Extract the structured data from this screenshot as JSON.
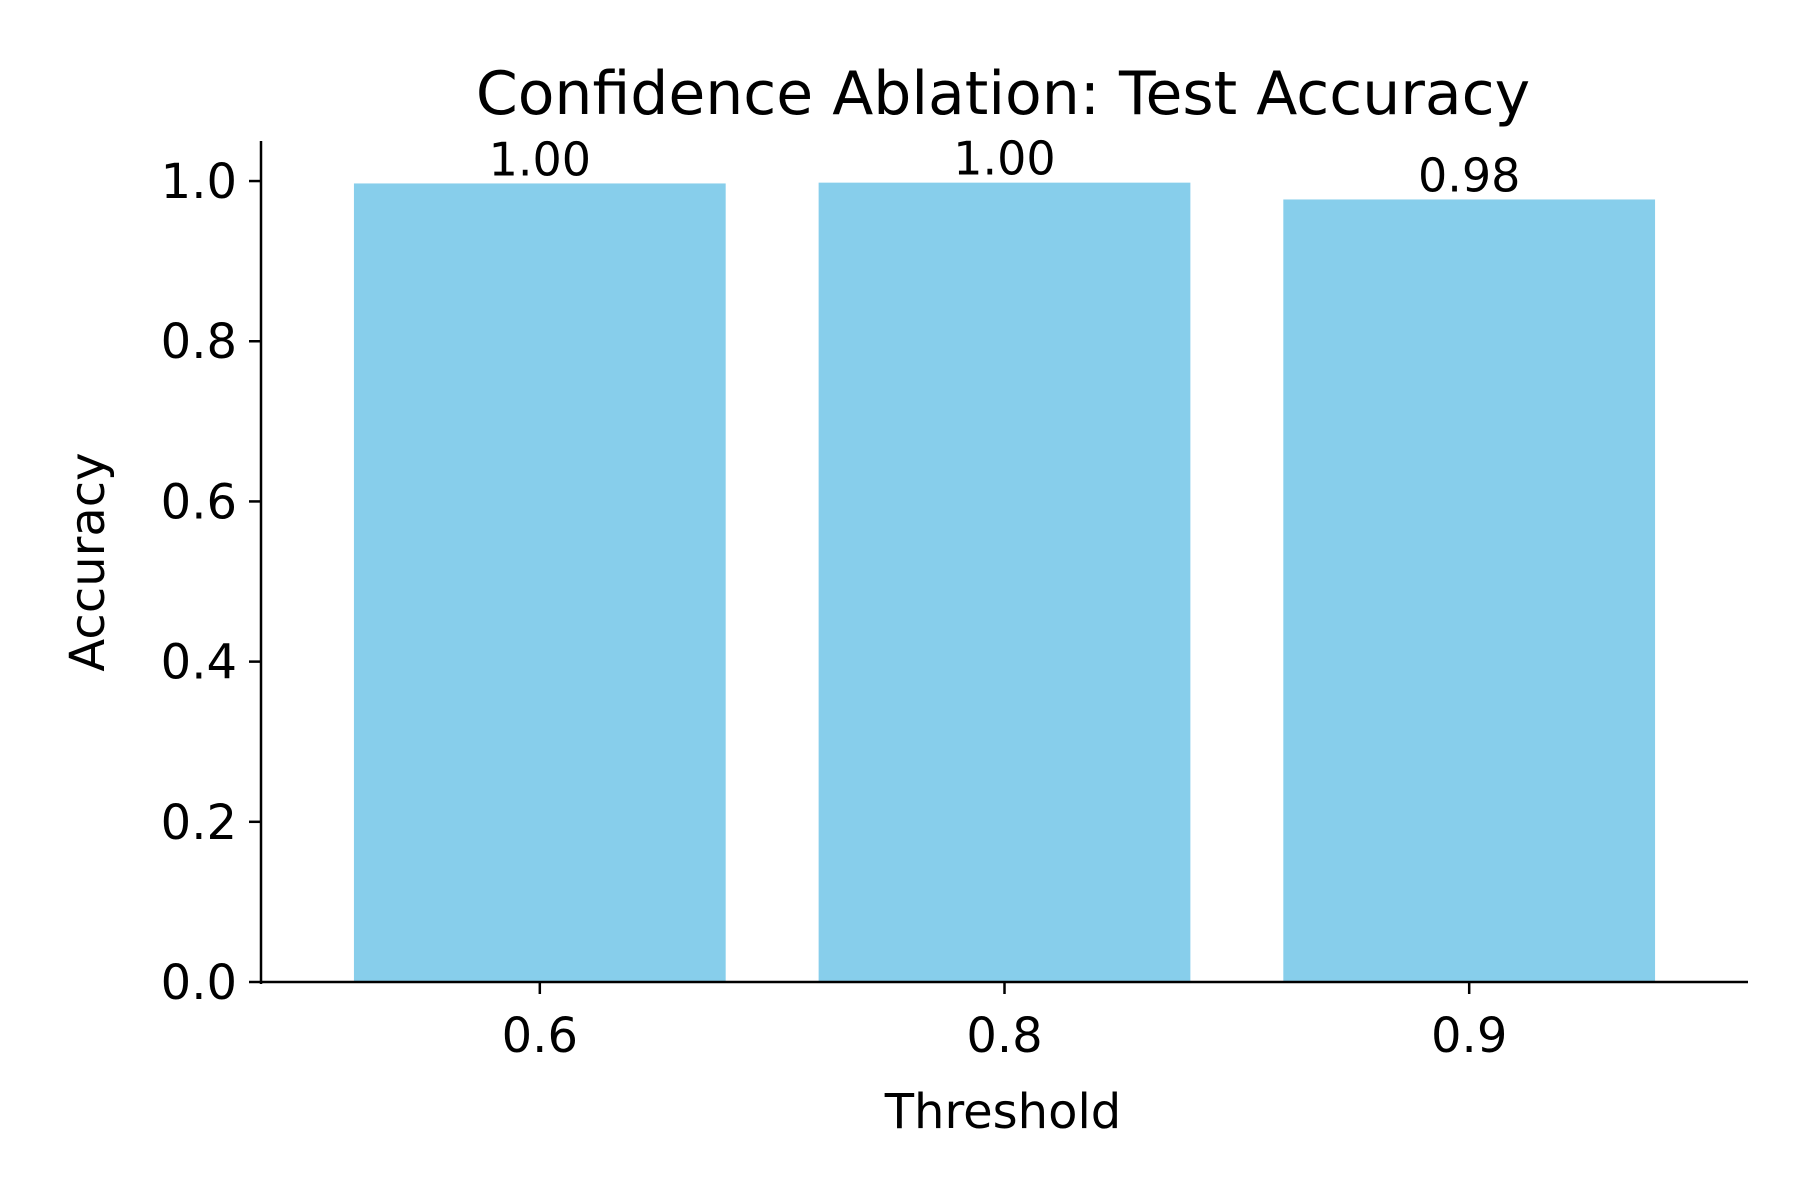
{
  "chart_data": {
    "type": "bar",
    "title": "Confidence Ablation: Test Accuracy",
    "xlabel": "Threshold",
    "ylabel": "Accuracy",
    "categories": [
      "0.6",
      "0.8",
      "0.9"
    ],
    "values": [
      0.997,
      0.998,
      0.977
    ],
    "data_labels": [
      "1.00",
      "1.00",
      "0.98"
    ],
    "ylim": [
      0,
      1.05
    ],
    "yticks": [
      0.0,
      0.2,
      0.4,
      0.6,
      0.8,
      1.0
    ],
    "ytick_labels": [
      "0.0",
      "0.2",
      "0.4",
      "0.6",
      "0.8",
      "1.0"
    ],
    "bar_color": "#87CEEB",
    "grid": false,
    "legend": "none"
  }
}
